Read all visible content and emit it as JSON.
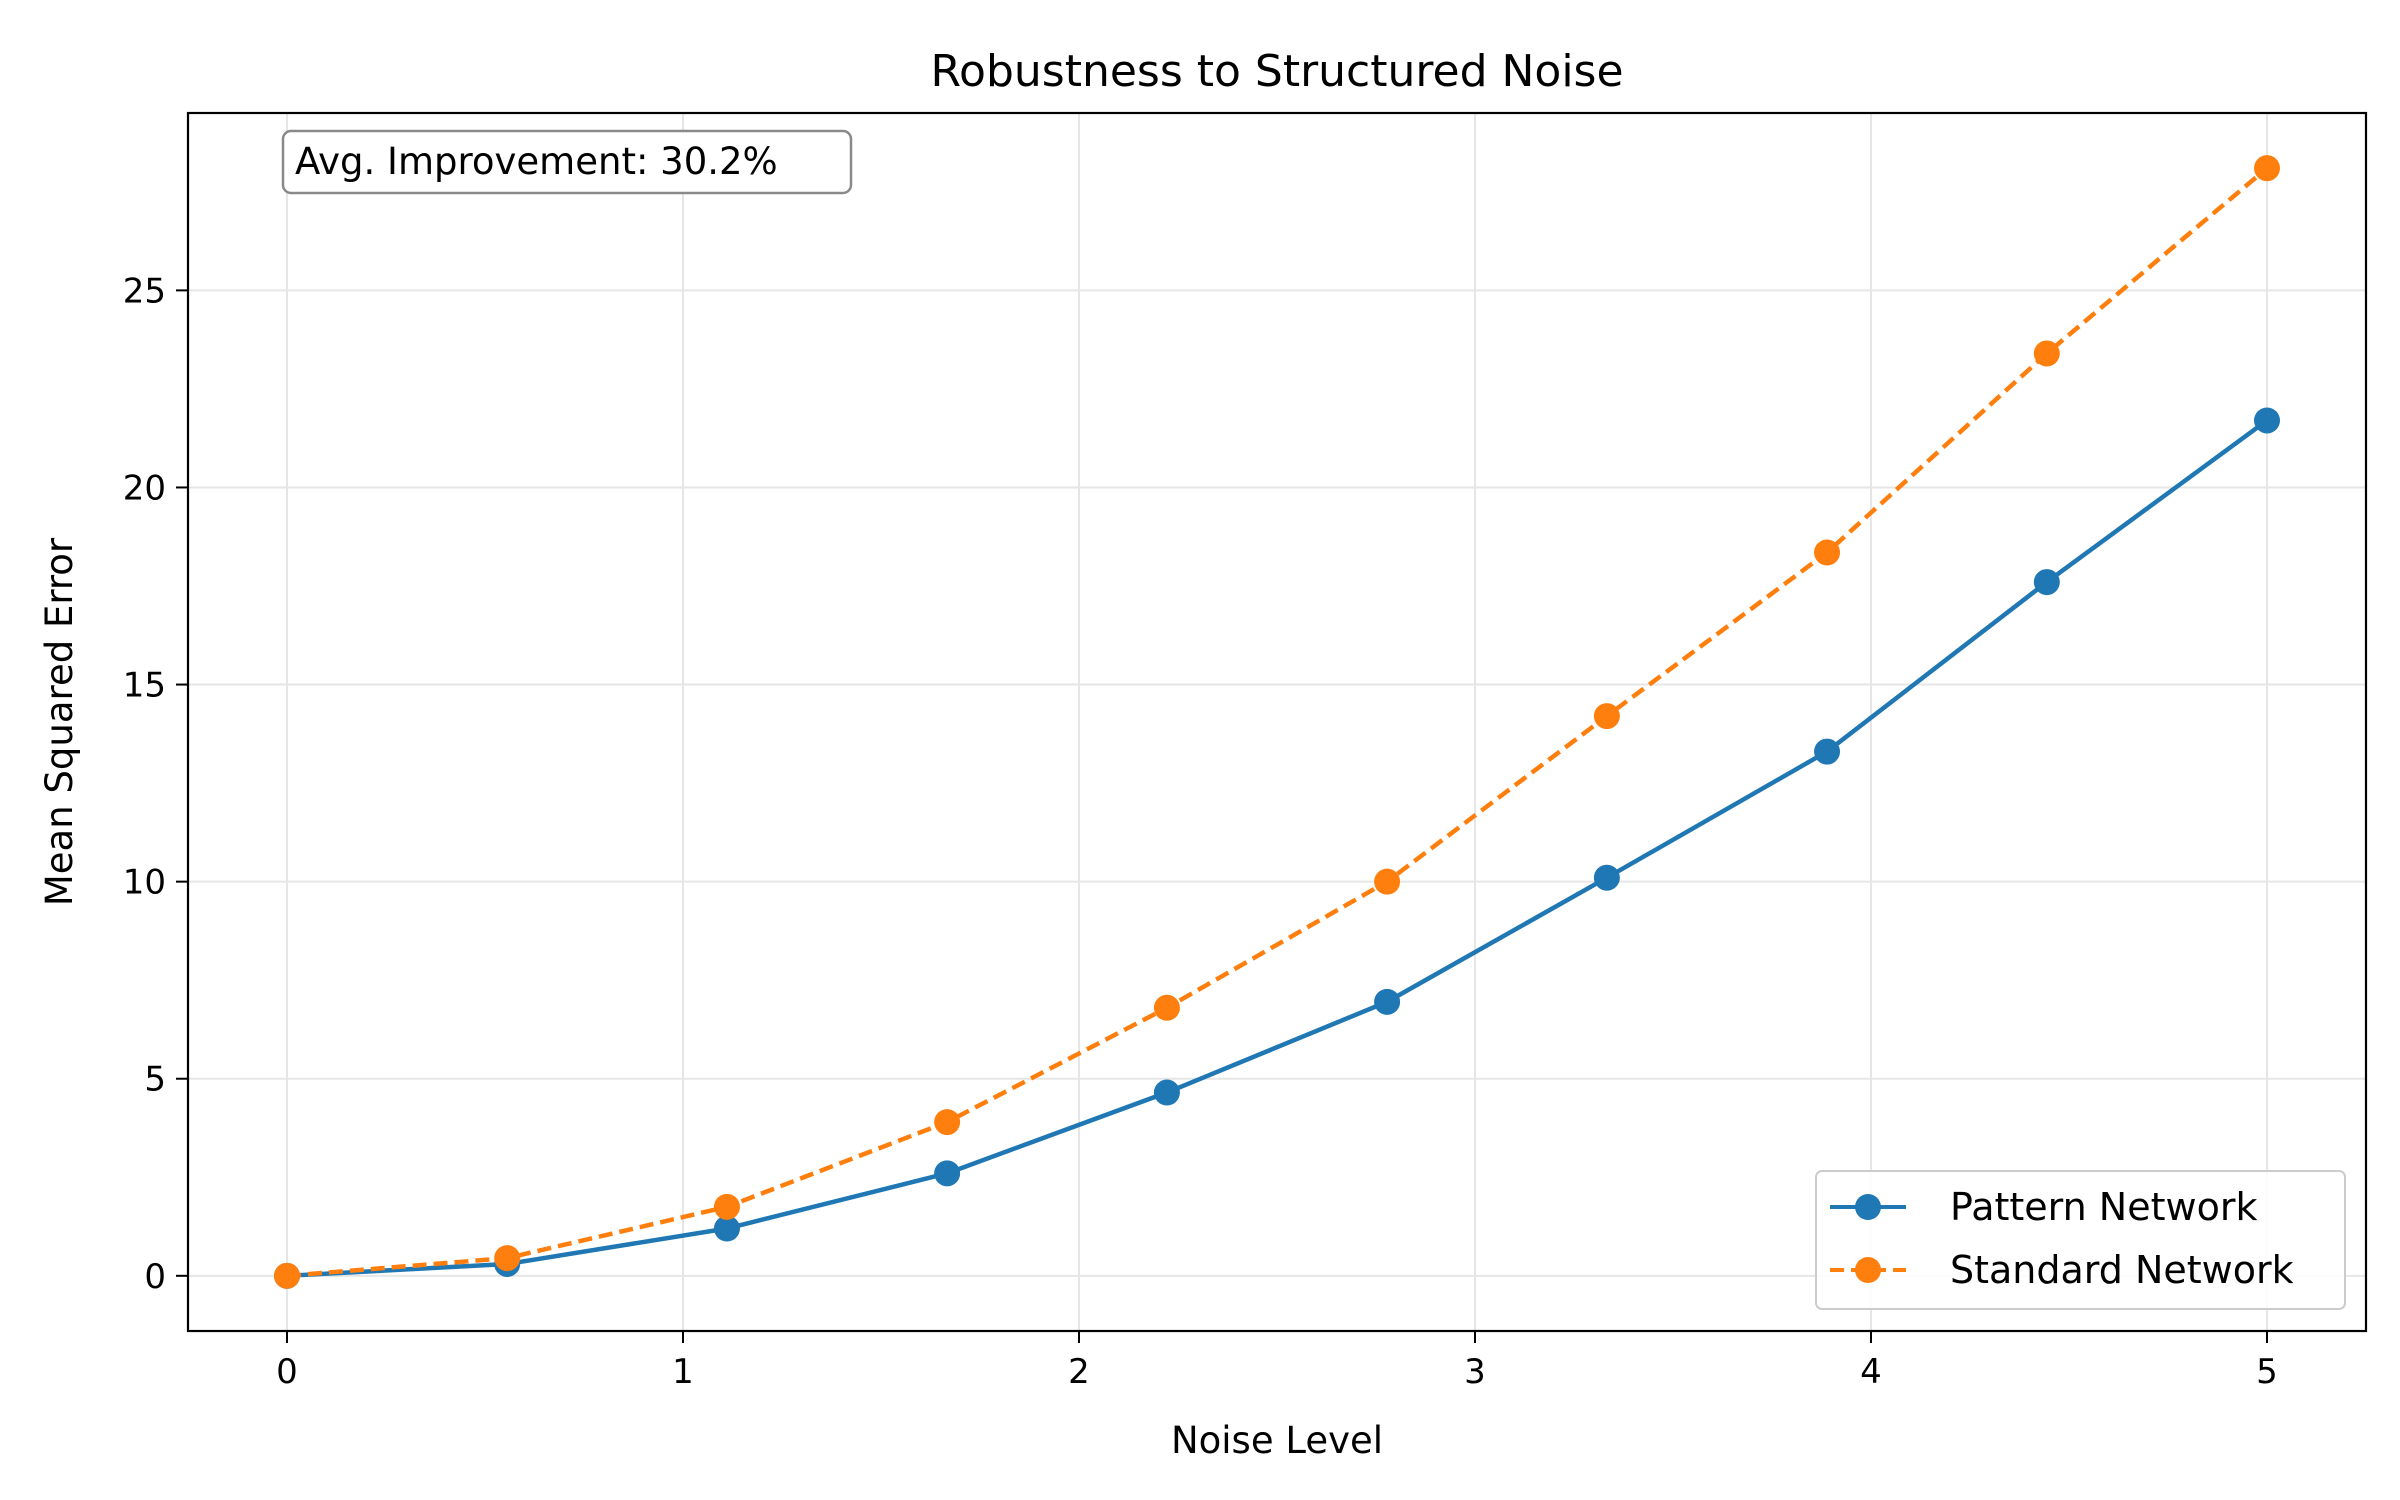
{
  "chart_data": {
    "type": "line",
    "title": "Robustness to Structured Noise",
    "xlabel": "Noise Level",
    "ylabel": "Mean Squared Error",
    "xlim": [
      -0.25,
      5.25
    ],
    "ylim": [
      -1.4,
      29.5
    ],
    "xticks": [
      0,
      1,
      2,
      3,
      4,
      5
    ],
    "yticks": [
      0,
      5,
      10,
      15,
      20,
      25
    ],
    "grid": true,
    "legend_position": "lower-right",
    "annotation": "Avg. Improvement: 30.2%",
    "x": [
      0,
      0.556,
      1.111,
      1.667,
      2.222,
      2.778,
      3.333,
      3.889,
      4.444,
      5.0
    ],
    "series": [
      {
        "name": "Pattern Network",
        "color": "#1f77b4",
        "line_style": "solid",
        "marker": "circle",
        "values": [
          0.0,
          0.3,
          1.2,
          2.6,
          4.65,
          6.95,
          10.1,
          13.3,
          17.6,
          21.7
        ]
      },
      {
        "name": "Standard Network",
        "color": "#ff7f0e",
        "line_style": "dashed",
        "marker": "circle",
        "values": [
          0.0,
          0.45,
          1.75,
          3.9,
          6.8,
          10.0,
          14.2,
          18.35,
          23.4,
          28.1
        ]
      }
    ]
  }
}
